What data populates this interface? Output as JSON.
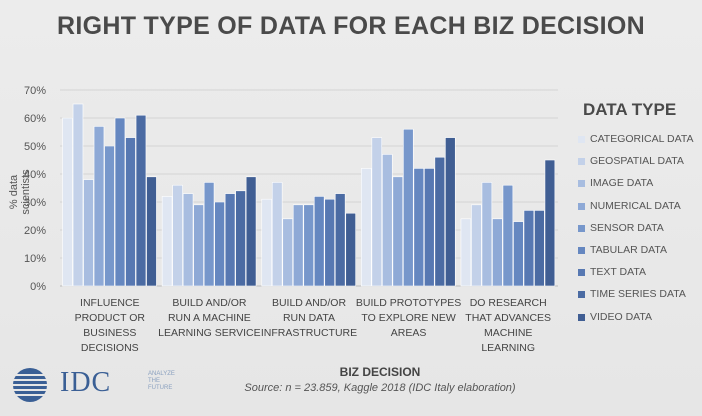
{
  "chart_data": {
    "type": "bar",
    "title": "RIGHT TYPE OF DATA FOR EACH BIZ DECISION",
    "xlabel": "BIZ DECISION",
    "ylabel": "% data scientists",
    "source": "Source: n = 23.859, Kaggle 2018 (IDC Italy elaboration)",
    "ylim": [
      0,
      70
    ],
    "yticks": [
      "0%",
      "10%",
      "20%",
      "30%",
      "40%",
      "50%",
      "60%",
      "70%"
    ],
    "legend_title": "DATA TYPE",
    "legend_position": "right",
    "categories": [
      [
        "INFLUENCE",
        "PRODUCT OR",
        "BUSINESS",
        "DECISIONS"
      ],
      [
        "BUILD AND/OR",
        "RUN A MACHINE",
        "LEARNING SERVICE"
      ],
      [
        "BUILD AND/OR",
        "RUN DATA",
        "INFRASTRUCTURE"
      ],
      [
        "BUILD PROTOTYPES",
        "TO EXPLORE NEW",
        "AREAS"
      ],
      [
        "DO RESEARCH",
        "THAT ADVANCES",
        "MACHINE",
        "LEARNING"
      ]
    ],
    "series": [
      {
        "name": "CATEGORICAL DATA",
        "color": "#dfe6f2",
        "values": [
          60,
          32,
          31,
          42,
          24
        ]
      },
      {
        "name": "GEOSPATIAL DATA",
        "color": "#c3d1e9",
        "values": [
          65,
          36,
          37,
          53,
          29
        ]
      },
      {
        "name": "IMAGE DATA",
        "color": "#a8bde0",
        "values": [
          38,
          33,
          24,
          47,
          37
        ]
      },
      {
        "name": "NUMERICAL DATA",
        "color": "#8ea9d6",
        "values": [
          57,
          29,
          29,
          39,
          24
        ]
      },
      {
        "name": "SENSOR DATA",
        "color": "#7797cb",
        "values": [
          50,
          37,
          29,
          56,
          36
        ]
      },
      {
        "name": "TABULAR DATA",
        "color": "#6587c0",
        "values": [
          60,
          30,
          32,
          42,
          23
        ]
      },
      {
        "name": "TEXT DATA",
        "color": "#5778b2",
        "values": [
          53,
          33,
          31,
          42,
          27
        ]
      },
      {
        "name": "TIME SERIES DATA",
        "color": "#4b6ba3",
        "values": [
          61,
          34,
          33,
          46,
          27
        ]
      },
      {
        "name": "VIDEO DATA",
        "color": "#405e93",
        "values": [
          39,
          39,
          26,
          53,
          45
        ]
      }
    ]
  },
  "logo": {
    "text": "IDC",
    "tagline": [
      "ANALYZE",
      "THE",
      "FUTURE"
    ]
  }
}
